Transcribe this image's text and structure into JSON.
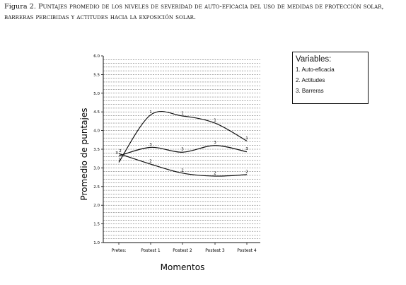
{
  "caption": {
    "label": "Figura 2.",
    "text": "Puntajes promedio de los niveles de severidad de auto-eficacia del uso de medidas de protección solar, barreras percibidas y actitudes hacia la exposición solar."
  },
  "legend": {
    "title": "Variables:",
    "items": [
      "1. Auto-eficacia",
      "2. Actitudes",
      "3. Barreras"
    ]
  },
  "chart_data": {
    "type": "line",
    "xlabel": "Momentos",
    "ylabel": "Promedio de puntajes",
    "categories": [
      "Pretes:",
      "Postest 1",
      "Postest 2",
      "Postest 3",
      "Postest 4"
    ],
    "ylim": [
      1.0,
      6.0
    ],
    "yticks": [
      "1.0",
      "1.5",
      "2.0",
      "2.5",
      "3.0",
      "3.5",
      "4.0",
      "4.5",
      "5.0",
      "5.5",
      "6.0"
    ],
    "grid": "horizontal dashed",
    "series": [
      {
        "name": "1. Auto-eficacia",
        "marker": "1",
        "values": [
          3.15,
          4.42,
          4.39,
          4.2,
          3.72
        ]
      },
      {
        "name": "2. Actitudes",
        "marker": "2",
        "values": [
          3.38,
          3.1,
          2.86,
          2.78,
          2.82
        ]
      },
      {
        "name": "3. Barreras",
        "marker": "3",
        "values": [
          3.32,
          3.55,
          3.42,
          3.6,
          3.43
        ]
      }
    ],
    "colors": {
      "line": "#111111",
      "grid": "#555555"
    }
  }
}
